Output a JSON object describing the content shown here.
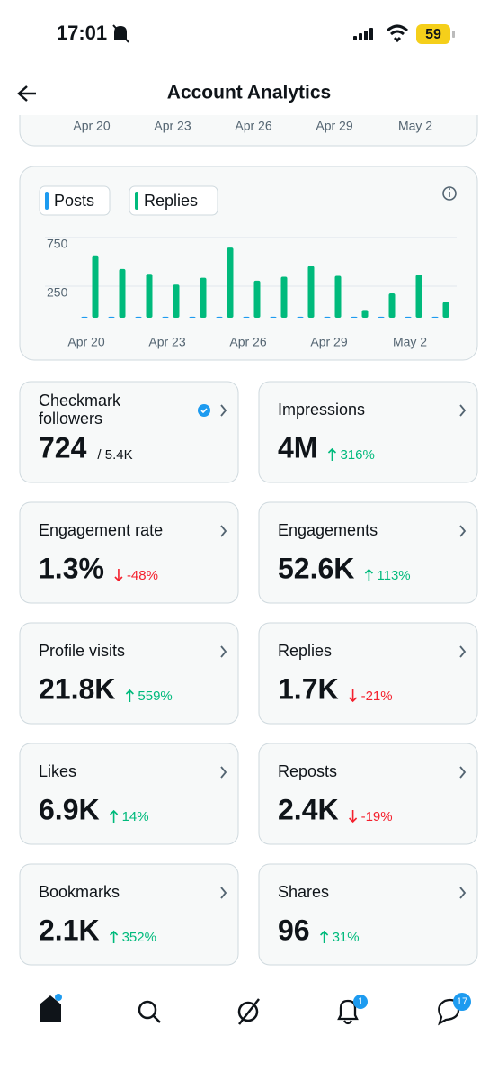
{
  "status_bar": {
    "time": "17:01",
    "battery": "59"
  },
  "header": {
    "title": "Account Analytics"
  },
  "previous_chart": {
    "x_labels": [
      "Apr 20",
      "Apr 23",
      "Apr 26",
      "Apr 29",
      "May 2"
    ]
  },
  "chart_data": {
    "type": "bar",
    "categories": [
      "Apr 20",
      null,
      null,
      "Apr 23",
      null,
      null,
      "Apr 26",
      null,
      null,
      "Apr 29",
      null,
      null,
      "May 2",
      null
    ],
    "series": [
      {
        "name": "Posts",
        "color": "#1d9bf0",
        "values": [
          10,
          10,
          10,
          10,
          10,
          10,
          10,
          10,
          10,
          10,
          10,
          10,
          10,
          10
        ]
      },
      {
        "name": "Replies",
        "color": "#00ba7c",
        "values": [
          640,
          500,
          450,
          340,
          410,
          720,
          380,
          420,
          530,
          430,
          80,
          250,
          440,
          160
        ]
      }
    ],
    "ylim": [
      0,
      850
    ],
    "yticks": [
      250,
      750
    ],
    "grid": true
  },
  "cards": [
    {
      "label": "Checkmark followers",
      "value": "724",
      "secondary": "/ 5.4K",
      "verified": true
    },
    {
      "label": "Impressions",
      "value": "4M",
      "change": "316%",
      "direction": "up"
    },
    {
      "label": "Engagement rate",
      "value": "1.3%",
      "change": "-48%",
      "direction": "down"
    },
    {
      "label": "Engagements",
      "value": "52.6K",
      "change": "113%",
      "direction": "up"
    },
    {
      "label": "Profile visits",
      "value": "21.8K",
      "change": "559%",
      "direction": "up"
    },
    {
      "label": "Replies",
      "value": "1.7K",
      "change": "-21%",
      "direction": "down"
    },
    {
      "label": "Likes",
      "value": "6.9K",
      "change": "14%",
      "direction": "up"
    },
    {
      "label": "Reposts",
      "value": "2.4K",
      "change": "-19%",
      "direction": "down"
    },
    {
      "label": "Bookmarks",
      "value": "2.1K",
      "change": "352%",
      "direction": "up"
    },
    {
      "label": "Shares",
      "value": "96",
      "change": "31%",
      "direction": "up"
    }
  ],
  "nav": {
    "notifications_badge": "1",
    "messages_badge": "17"
  }
}
